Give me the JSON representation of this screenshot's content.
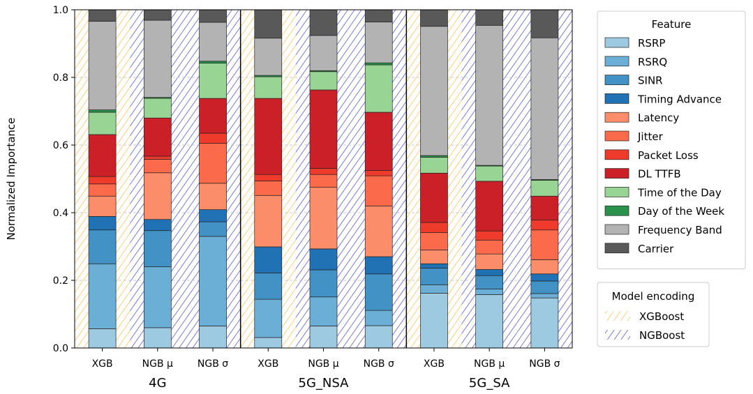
{
  "chart_data": {
    "type": "stacked-bar",
    "ylabel": "Normalized Importance",
    "ylim": [
      0,
      1
    ],
    "yticks": [
      "0.0",
      "0.2",
      "0.4",
      "0.6",
      "0.8",
      "1.0"
    ],
    "grid": "horizontal-dashed",
    "groups": [
      "4G",
      "5G_NSA",
      "5G_SA"
    ],
    "bar_labels": [
      "XGB",
      "NGB μ",
      "NGB σ"
    ],
    "legend_feature": {
      "title": "Feature",
      "placement": "right",
      "items": [
        {
          "name": "RSRP",
          "color": "#9ecae1"
        },
        {
          "name": "RSRQ",
          "color": "#6baed6"
        },
        {
          "name": "SINR",
          "color": "#4292c6"
        },
        {
          "name": "Timing Advance",
          "color": "#2171b5"
        },
        {
          "name": "Latency",
          "color": "#fc8d6a"
        },
        {
          "name": "Jitter",
          "color": "#fb6a4a"
        },
        {
          "name": "Packet Loss",
          "color": "#ef3b2c"
        },
        {
          "name": "DL TTFB",
          "color": "#cb2027"
        },
        {
          "name": "Time of the Day",
          "color": "#98d594"
        },
        {
          "name": "Day of the Week",
          "color": "#2a924a"
        },
        {
          "name": "Frequency Band",
          "color": "#b3b3b3"
        },
        {
          "name": "Carrier",
          "color": "#595959"
        }
      ]
    },
    "legend_model": {
      "title": "Model encoding",
      "items": [
        {
          "name": "XGBoost",
          "color": "#ffb732"
        },
        {
          "name": "NGBoost",
          "color": "#3333cc"
        }
      ]
    },
    "bars": [
      {
        "group": "4G",
        "label": "XGB",
        "model": "XGBoost",
        "values": [
          0.057,
          0.192,
          0.1,
          0.04,
          0.06,
          0.036,
          0.022,
          0.124,
          0.066,
          0.007,
          0.262,
          0.034
        ]
      },
      {
        "group": "4G",
        "label": "NGB μ",
        "model": "NGBoost",
        "values": [
          0.06,
          0.18,
          0.107,
          0.033,
          0.138,
          0.04,
          0.009,
          0.113,
          0.058,
          0.003,
          0.228,
          0.031
        ]
      },
      {
        "group": "4G",
        "label": "NGB σ",
        "model": "NGBoost",
        "values": [
          0.065,
          0.265,
          0.043,
          0.036,
          0.078,
          0.118,
          0.03,
          0.103,
          0.104,
          0.006,
          0.115,
          0.037
        ]
      },
      {
        "group": "5G_NSA",
        "label": "XGB",
        "model": "XGBoost",
        "values": [
          0.031,
          0.113,
          0.078,
          0.077,
          0.152,
          0.043,
          0.019,
          0.225,
          0.064,
          0.004,
          0.11,
          0.084
        ]
      },
      {
        "group": "5G_NSA",
        "label": "NGB μ",
        "model": "NGBoost",
        "values": [
          0.065,
          0.086,
          0.08,
          0.062,
          0.182,
          0.038,
          0.018,
          0.232,
          0.054,
          0.003,
          0.104,
          0.076
        ]
      },
      {
        "group": "5G_NSA",
        "label": "NGB σ",
        "model": "NGBoost",
        "values": [
          0.066,
          0.045,
          0.108,
          0.051,
          0.15,
          0.089,
          0.016,
          0.172,
          0.14,
          0.006,
          0.121,
          0.036
        ]
      },
      {
        "group": "5G_SA",
        "label": "XGB",
        "model": "XGBoost",
        "values": [
          0.162,
          0.025,
          0.049,
          0.013,
          0.041,
          0.051,
          0.03,
          0.146,
          0.047,
          0.005,
          0.382,
          0.049
        ]
      },
      {
        "group": "5G_SA",
        "label": "NGB μ",
        "model": "NGBoost",
        "values": [
          0.158,
          0.016,
          0.04,
          0.018,
          0.046,
          0.041,
          0.027,
          0.147,
          0.045,
          0.002,
          0.414,
          0.046
        ]
      },
      {
        "group": "5G_SA",
        "label": "NGB σ",
        "model": "NGBoost",
        "values": [
          0.148,
          0.013,
          0.037,
          0.021,
          0.042,
          0.088,
          0.029,
          0.071,
          0.047,
          0.002,
          0.419,
          0.083
        ]
      }
    ]
  }
}
